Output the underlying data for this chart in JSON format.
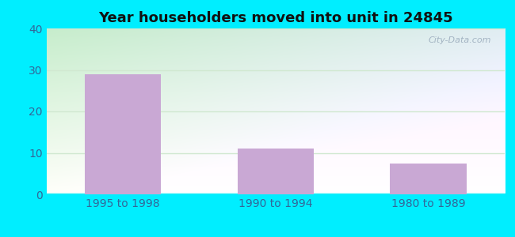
{
  "title": "Year householders moved into unit in 24845",
  "categories": [
    "1995 to 1998",
    "1990 to 1994",
    "1980 to 1989"
  ],
  "values": [
    29,
    11,
    7.5
  ],
  "bar_color": "#c9a8d4",
  "ylim": [
    0,
    40
  ],
  "yticks": [
    0,
    10,
    20,
    30,
    40
  ],
  "title_fontsize": 13,
  "tick_fontsize": 10,
  "outer_bg_color": "#00eeff",
  "plot_bg_top_left": "#c8eacc",
  "plot_bg_bottom_right": "#e8f8f8",
  "grid_color": "#d0e8d0",
  "watermark_text": "City-Data.com",
  "tick_color": "#336699",
  "figsize": [
    6.5,
    3.0
  ],
  "dpi": 100
}
